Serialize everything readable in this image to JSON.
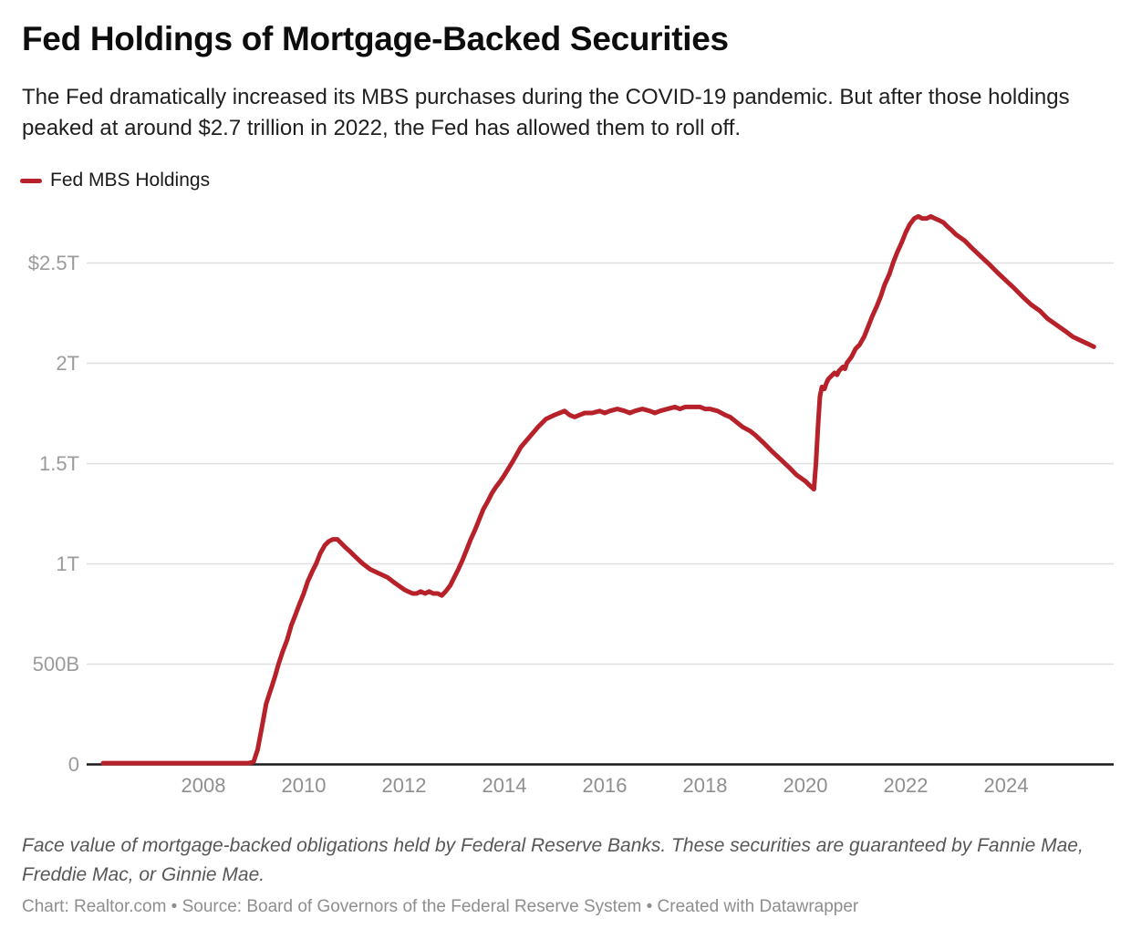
{
  "header": {
    "title": "Fed Holdings of Mortgage-Backed Securities",
    "subtitle": "The Fed dramatically increased its MBS purchases during the COVID-19 pandemic. But after those holdings peaked at around $2.7 trillion in 2022, the Fed has allowed them to roll off."
  },
  "legend": {
    "label": "Fed MBS Holdings",
    "color": "#b7212a"
  },
  "chart_data": {
    "type": "line",
    "title": "Fed Holdings of Mortgage-Backed Securities",
    "unit": "USD trillions (face value)",
    "xlabel": "",
    "ylabel": "",
    "xlim": [
      2006.0,
      2025.9
    ],
    "ylim": [
      0,
      2.85
    ],
    "grid": "horizontal",
    "legend_position": "top-left",
    "line_color": "#b7212a",
    "grid_color": "#e0e0e0",
    "axis_color": "#1a1a1a",
    "y_ticks": [
      {
        "value": 2.5,
        "label": "$2.5T"
      },
      {
        "value": 2.0,
        "label": "2T"
      },
      {
        "value": 1.5,
        "label": "1.5T"
      },
      {
        "value": 1.0,
        "label": "1T"
      },
      {
        "value": 0.5,
        "label": "500B"
      },
      {
        "value": 0.0,
        "label": "0"
      }
    ],
    "x_ticks": [
      2008,
      2010,
      2012,
      2014,
      2016,
      2018,
      2020,
      2022,
      2024
    ],
    "series": [
      {
        "name": "Fed MBS Holdings",
        "x": [
          2006.0,
          2006.5,
          2007.0,
          2007.5,
          2008.0,
          2008.5,
          2008.9,
          2009.0,
          2009.08,
          2009.17,
          2009.25,
          2009.33,
          2009.42,
          2009.5,
          2009.58,
          2009.67,
          2009.75,
          2009.83,
          2009.92,
          2010.0,
          2010.08,
          2010.17,
          2010.25,
          2010.33,
          2010.42,
          2010.5,
          2010.58,
          2010.67,
          2010.75,
          2010.83,
          2010.92,
          2011.0,
          2011.17,
          2011.33,
          2011.5,
          2011.67,
          2011.83,
          2012.0,
          2012.08,
          2012.17,
          2012.25,
          2012.33,
          2012.42,
          2012.5,
          2012.58,
          2012.67,
          2012.75,
          2012.83,
          2012.92,
          2013.0,
          2013.08,
          2013.17,
          2013.25,
          2013.33,
          2013.42,
          2013.5,
          2013.58,
          2013.67,
          2013.75,
          2013.83,
          2013.92,
          2014.0,
          2014.17,
          2014.33,
          2014.5,
          2014.67,
          2014.83,
          2015.0,
          2015.1,
          2015.2,
          2015.3,
          2015.4,
          2015.5,
          2015.6,
          2015.75,
          2015.9,
          2016.0,
          2016.1,
          2016.25,
          2016.4,
          2016.5,
          2016.6,
          2016.75,
          2016.9,
          2017.0,
          2017.1,
          2017.25,
          2017.4,
          2017.5,
          2017.6,
          2017.75,
          2017.9,
          2018.0,
          2018.1,
          2018.25,
          2018.4,
          2018.5,
          2018.6,
          2018.75,
          2018.9,
          2019.0,
          2019.17,
          2019.33,
          2019.5,
          2019.67,
          2019.83,
          2020.0,
          2020.08,
          2020.17,
          2020.21,
          2020.25,
          2020.29,
          2020.33,
          2020.38,
          2020.42,
          2020.46,
          2020.5,
          2020.58,
          2020.63,
          2020.67,
          2020.75,
          2020.79,
          2020.83,
          2020.92,
          2021.0,
          2021.08,
          2021.17,
          2021.25,
          2021.33,
          2021.42,
          2021.5,
          2021.58,
          2021.67,
          2021.75,
          2021.83,
          2021.92,
          2022.0,
          2022.08,
          2022.17,
          2022.25,
          2022.33,
          2022.42,
          2022.5,
          2022.58,
          2022.67,
          2022.75,
          2022.83,
          2022.92,
          2023.0,
          2023.17,
          2023.33,
          2023.5,
          2023.67,
          2023.83,
          2024.0,
          2024.17,
          2024.33,
          2024.5,
          2024.67,
          2024.83,
          2025.0,
          2025.17,
          2025.33,
          2025.5,
          2025.67,
          2025.75
        ],
        "values": [
          0.004,
          0.004,
          0.004,
          0.004,
          0.004,
          0.004,
          0.004,
          0.01,
          0.07,
          0.19,
          0.3,
          0.36,
          0.43,
          0.5,
          0.56,
          0.62,
          0.69,
          0.74,
          0.8,
          0.85,
          0.91,
          0.96,
          1.0,
          1.05,
          1.09,
          1.11,
          1.12,
          1.12,
          1.1,
          1.08,
          1.06,
          1.04,
          1.0,
          0.97,
          0.95,
          0.93,
          0.9,
          0.87,
          0.86,
          0.85,
          0.85,
          0.86,
          0.85,
          0.86,
          0.85,
          0.85,
          0.84,
          0.86,
          0.89,
          0.93,
          0.97,
          1.02,
          1.07,
          1.12,
          1.17,
          1.22,
          1.27,
          1.31,
          1.35,
          1.38,
          1.41,
          1.44,
          1.51,
          1.58,
          1.63,
          1.68,
          1.72,
          1.74,
          1.75,
          1.76,
          1.74,
          1.73,
          1.74,
          1.75,
          1.75,
          1.76,
          1.75,
          1.76,
          1.77,
          1.76,
          1.75,
          1.76,
          1.77,
          1.76,
          1.75,
          1.76,
          1.77,
          1.78,
          1.77,
          1.78,
          1.78,
          1.78,
          1.77,
          1.77,
          1.76,
          1.74,
          1.73,
          1.71,
          1.68,
          1.66,
          1.64,
          1.6,
          1.56,
          1.52,
          1.48,
          1.44,
          1.41,
          1.39,
          1.37,
          1.5,
          1.68,
          1.83,
          1.88,
          1.87,
          1.9,
          1.92,
          1.93,
          1.95,
          1.94,
          1.96,
          1.98,
          1.97,
          2.0,
          2.03,
          2.07,
          2.09,
          2.13,
          2.18,
          2.23,
          2.28,
          2.33,
          2.39,
          2.44,
          2.5,
          2.55,
          2.6,
          2.65,
          2.69,
          2.72,
          2.73,
          2.72,
          2.72,
          2.73,
          2.72,
          2.71,
          2.7,
          2.68,
          2.66,
          2.64,
          2.61,
          2.57,
          2.53,
          2.49,
          2.45,
          2.41,
          2.37,
          2.33,
          2.29,
          2.26,
          2.22,
          2.19,
          2.16,
          2.13,
          2.11,
          2.09,
          2.08
        ]
      }
    ]
  },
  "footnote": "Face value of mortgage-backed obligations held by Federal Reserve Banks. These securities are guaranteed by Fannie Mae, Freddie Mac, or Ginnie Mae.",
  "credit": "Chart: Realtor.com • Source: Board of Governors of the Federal Reserve System • Created with Datawrapper"
}
